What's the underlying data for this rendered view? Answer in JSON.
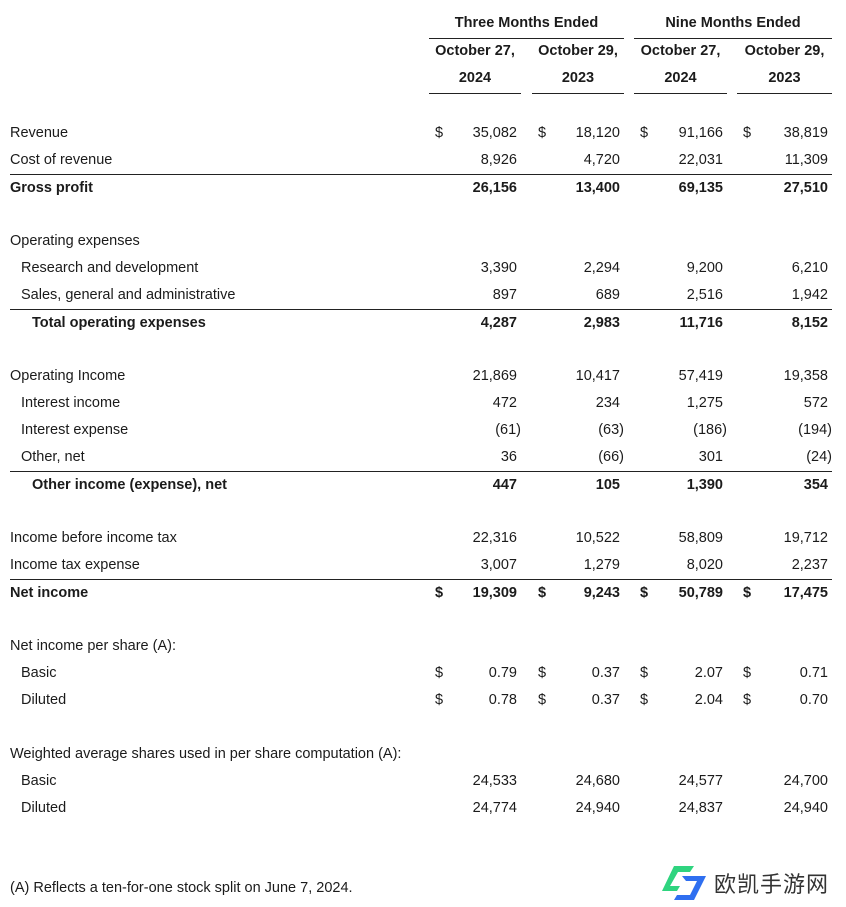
{
  "header": {
    "groups": [
      "Three Months Ended",
      "Nine Months Ended"
    ],
    "columns": [
      {
        "line1": "October 27,",
        "line2": "2024"
      },
      {
        "line1": "October 29,",
        "line2": "2023"
      },
      {
        "line1": "October 27,",
        "line2": "2024"
      },
      {
        "line1": "October 29,",
        "line2": "2023"
      }
    ]
  },
  "rows": [
    {
      "label": "Revenue",
      "dollar": true,
      "values": [
        "35,082",
        "18,120",
        "91,166",
        "38,819"
      ]
    },
    {
      "label": "Cost of revenue",
      "values": [
        "8,926",
        "4,720",
        "22,031",
        "11,309"
      ]
    },
    {
      "label": "Gross profit",
      "bold": true,
      "top_rule": true,
      "values": [
        "26,156",
        "13,400",
        "69,135",
        "27,510"
      ]
    },
    {
      "blank": true
    },
    {
      "label": "Operating expenses",
      "values": []
    },
    {
      "label": "Research and development",
      "indent": true,
      "values": [
        "3,390",
        "2,294",
        "9,200",
        "6,210"
      ]
    },
    {
      "label": "Sales, general and administrative",
      "indent": true,
      "values": [
        "897",
        "689",
        "2,516",
        "1,942"
      ]
    },
    {
      "label": "Total operating expenses",
      "bold": true,
      "top_rule": true,
      "indent": true,
      "values": [
        "4,287",
        "2,983",
        "11,716",
        "8,152"
      ]
    },
    {
      "blank": true
    },
    {
      "label": "Operating Income",
      "values": [
        "21,869",
        "10,417",
        "57,419",
        "19,358"
      ]
    },
    {
      "label": "Interest income",
      "indent": true,
      "values": [
        "472",
        "234",
        "1,275",
        "572"
      ]
    },
    {
      "label": "Interest expense",
      "indent": true,
      "values": [
        "(61)",
        "(63)",
        "(186)",
        "(194)"
      ]
    },
    {
      "label": "Other, net",
      "indent": true,
      "values": [
        "36",
        "(66)",
        "301",
        "(24)"
      ]
    },
    {
      "label": "Other income (expense), net",
      "bold": true,
      "top_rule": true,
      "indent": true,
      "values": [
        "447",
        "105",
        "1,390",
        "354"
      ]
    },
    {
      "blank": true
    },
    {
      "label": "Income before income tax",
      "values": [
        "22,316",
        "10,522",
        "58,809",
        "19,712"
      ]
    },
    {
      "label": "Income tax expense",
      "values": [
        "3,007",
        "1,279",
        "8,020",
        "2,237"
      ]
    },
    {
      "label": "Net income",
      "bold": true,
      "top_rule": true,
      "dollar": true,
      "values": [
        "19,309",
        "9,243",
        "50,789",
        "17,475"
      ]
    },
    {
      "blank": true
    },
    {
      "label": "Net income per share (A):",
      "values": []
    },
    {
      "label": "Basic",
      "indent": true,
      "dollar": true,
      "values": [
        "0.79",
        "0.37",
        "2.07",
        "0.71"
      ]
    },
    {
      "label": "Diluted",
      "indent": true,
      "dollar": true,
      "values": [
        "0.78",
        "0.37",
        "2.04",
        "0.70"
      ]
    },
    {
      "blank": true
    },
    {
      "label": "Weighted average shares used in per share computation (A):",
      "values": []
    },
    {
      "label": "Basic",
      "indent": true,
      "values": [
        "24,533",
        "24,680",
        "24,577",
        "24,700"
      ]
    },
    {
      "label": "Diluted",
      "indent": true,
      "values": [
        "24,774",
        "24,940",
        "24,837",
        "24,940"
      ]
    }
  ],
  "currency_symbol": "$",
  "footnote": "(A) Reflects a ten-for-one stock split on June 7, 2024.",
  "watermark": {
    "text": "欧凯手游网",
    "colors": [
      "#2fd47f",
      "#2f6ff0"
    ]
  }
}
